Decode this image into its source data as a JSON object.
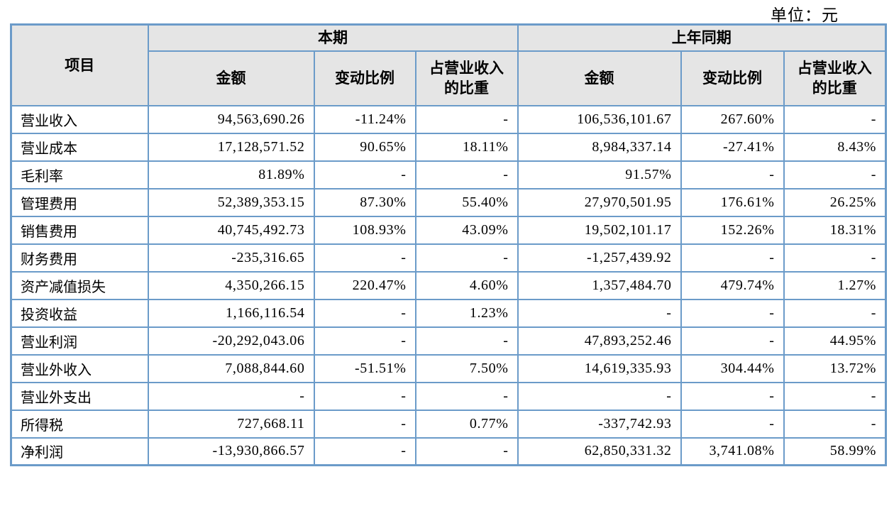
{
  "unit_label": "单位：元",
  "table": {
    "header": {
      "item": "项目",
      "current_label": "本期",
      "prior_label": "上年同期",
      "sub": {
        "amount": "金额",
        "change": "变动比例",
        "share_line1": "占营业收入",
        "share_line2": "的比重"
      }
    },
    "rows": [
      [
        "营业收入",
        "94,563,690.26",
        "-11.24%",
        "-",
        "106,536,101.67",
        "267.60%",
        "-"
      ],
      [
        "营业成本",
        "17,128,571.52",
        "90.65%",
        "18.11%",
        "8,984,337.14",
        "-27.41%",
        "8.43%"
      ],
      [
        "毛利率",
        "81.89%",
        "-",
        "-",
        "91.57%",
        "-",
        "-"
      ],
      [
        "管理费用",
        "52,389,353.15",
        "87.30%",
        "55.40%",
        "27,970,501.95",
        "176.61%",
        "26.25%"
      ],
      [
        "销售费用",
        "40,745,492.73",
        "108.93%",
        "43.09%",
        "19,502,101.17",
        "152.26%",
        "18.31%"
      ],
      [
        "财务费用",
        "-235,316.65",
        "-",
        "-",
        "-1,257,439.92",
        "-",
        "-"
      ],
      [
        "资产减值损失",
        "4,350,266.15",
        "220.47%",
        "4.60%",
        "1,357,484.70",
        "479.74%",
        "1.27%"
      ],
      [
        "投资收益",
        "1,166,116.54",
        "-",
        "1.23%",
        "-",
        "-",
        "-"
      ],
      [
        "营业利润",
        "-20,292,043.06",
        "-",
        "-",
        "47,893,252.46",
        "-",
        "44.95%"
      ],
      [
        "营业外收入",
        "7,088,844.60",
        "-51.51%",
        "7.50%",
        "14,619,335.93",
        "304.44%",
        "13.72%"
      ],
      [
        "营业外支出",
        "-",
        "-",
        "-",
        "-",
        "-",
        "-"
      ],
      [
        "所得税",
        "727,668.11",
        "-",
        "0.77%",
        "-337,742.93",
        "-",
        "-"
      ],
      [
        "净利润",
        "-13,930,866.57",
        "-",
        "-",
        "62,850,331.32",
        "3,741.08%",
        "58.99%"
      ]
    ]
  },
  "colors": {
    "border": "#6b9bc9",
    "header_bg": "#e5e5e5",
    "text": "#000000"
  }
}
